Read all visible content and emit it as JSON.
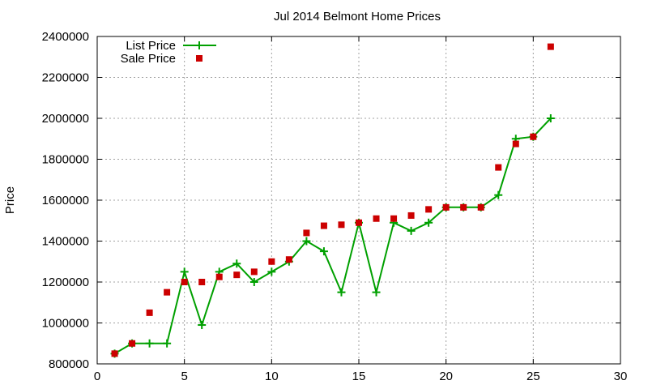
{
  "chart_data": {
    "type": "line",
    "title": "Jul 2014 Belmont Home Prices",
    "xlabel": "",
    "ylabel": "Price",
    "xlim": [
      0,
      30
    ],
    "ylim": [
      800000,
      2400000
    ],
    "x_ticks": [
      0,
      5,
      10,
      15,
      20,
      25,
      30
    ],
    "y_ticks": [
      800000,
      1000000,
      1200000,
      1400000,
      1600000,
      1800000,
      2000000,
      2200000,
      2400000
    ],
    "x_tick_labels": [
      "0",
      "5",
      "10",
      "15",
      "20",
      "25",
      "30"
    ],
    "y_tick_labels": [
      "800000",
      "1000000",
      "1200000",
      "1400000",
      "1600000",
      "1800000",
      "2000000",
      "2200000",
      "2400000"
    ],
    "grid": true,
    "legend_position": "top-left",
    "series": [
      {
        "name": "List Price",
        "style": "line-plus",
        "color": "#00a000",
        "x": [
          1,
          2,
          3,
          4,
          5,
          6,
          7,
          8,
          9,
          10,
          11,
          12,
          13,
          14,
          15,
          16,
          17,
          18,
          19,
          20,
          21,
          22,
          23,
          24,
          25,
          26
        ],
        "values": [
          850000,
          900000,
          900000,
          900000,
          1250000,
          990000,
          1250000,
          1290000,
          1200000,
          1250000,
          1300000,
          1400000,
          1350000,
          1150000,
          1490000,
          1150000,
          1490000,
          1450000,
          1490000,
          1565000,
          1565000,
          1565000,
          1625000,
          1900000,
          1910000,
          2000000
        ]
      },
      {
        "name": "Sale Price",
        "style": "square",
        "color": "#cc0000",
        "x": [
          1,
          2,
          3,
          4,
          5,
          6,
          7,
          8,
          9,
          10,
          11,
          12,
          13,
          14,
          15,
          16,
          17,
          18,
          19,
          20,
          21,
          22,
          23,
          24,
          25,
          26
        ],
        "values": [
          850000,
          900000,
          1050000,
          1150000,
          1200000,
          1200000,
          1225000,
          1235000,
          1250000,
          1300000,
          1310000,
          1440000,
          1475000,
          1480000,
          1490000,
          1510000,
          1510000,
          1525000,
          1555000,
          1565000,
          1565000,
          1565000,
          1760000,
          1875000,
          1910000,
          2350000
        ]
      }
    ]
  }
}
